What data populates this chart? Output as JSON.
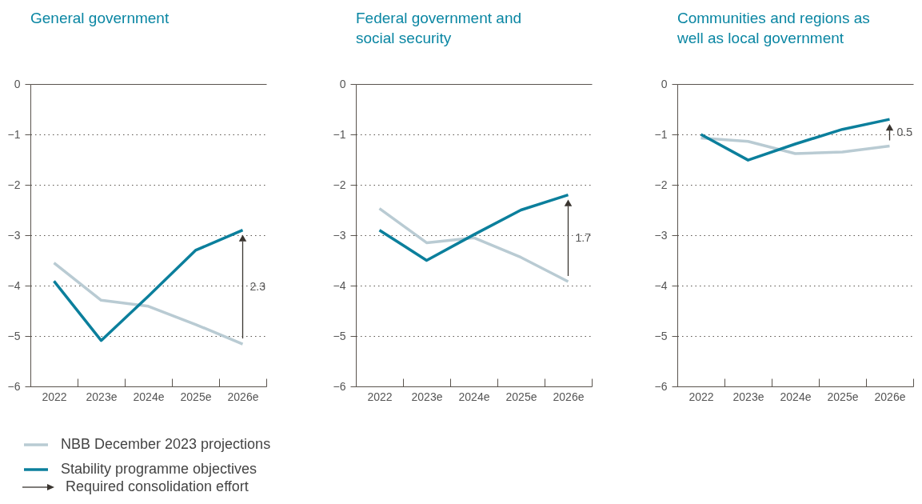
{
  "chart_data": [
    {
      "type": "line",
      "title": "General government",
      "categories": [
        "2022",
        "2023e",
        "2024e",
        "2025e",
        "2026e"
      ],
      "series": [
        {
          "name": "NBB December 2023 projections",
          "color": "#b9cbd3",
          "values": [
            -3.55,
            -4.29,
            -4.41,
            -4.77,
            -5.16
          ]
        },
        {
          "name": "Stability programme objectives",
          "color": "#0b7f9c",
          "values": [
            -3.91,
            -5.09,
            -4.21,
            -3.3,
            -2.9
          ]
        }
      ],
      "ylim": [
        -6,
        0
      ],
      "yticks": [
        -6,
        -5,
        -4,
        -3,
        -2,
        -1,
        0
      ],
      "grid": "y",
      "legend": "bottom left",
      "annotations": [
        "2.3",
        "Required consolidation effort"
      ]
    },
    {
      "type": "line",
      "title": "Federal government and social security",
      "categories": [
        "2022",
        "2023e",
        "2024e",
        "2025e",
        "2026e"
      ],
      "series": [
        {
          "color": "#b9cbd3",
          "values": [
            -2.47,
            -3.15,
            -3.05,
            -3.44,
            -3.92
          ]
        },
        {
          "color": "#0b7f9c",
          "values": [
            -2.9,
            -3.5,
            -2.99,
            -2.5,
            -2.2
          ]
        }
      ],
      "ylim": [
        -6,
        0
      ],
      "yticks": [
        -6,
        -5,
        -4,
        -3,
        -2,
        -1,
        0
      ],
      "grid": "y",
      "annotations": [
        "1.7"
      ]
    },
    {
      "type": "line",
      "title": "Communities and regions as well as local government",
      "categories": [
        "2022",
        "2023e",
        "2024e",
        "2025e",
        "2026e"
      ],
      "series": [
        {
          "color": "#b9cbd3",
          "values": [
            -1.07,
            -1.14,
            -1.38,
            -1.35,
            -1.23
          ]
        },
        {
          "color": "#0b7f9c",
          "values": [
            -1.0,
            -1.51,
            -1.19,
            -0.9,
            -0.7
          ]
        }
      ],
      "ylim": [
        -6,
        0
      ],
      "yticks": [
        -6,
        -5,
        -4,
        -3,
        -2,
        -1,
        0
      ],
      "grid": "y",
      "annotations": [
        "0.5"
      ]
    }
  ]
}
